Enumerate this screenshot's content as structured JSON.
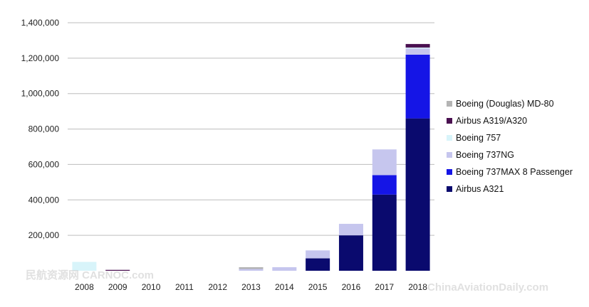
{
  "chart_data": {
    "type": "bar",
    "stacked": true,
    "title": "",
    "xlabel": "",
    "ylabel": "",
    "ylim": [
      0,
      1400000
    ],
    "y_ticks": [
      "200,000",
      "400,000",
      "600,000",
      "800,000",
      "1,000,000",
      "1,200,000",
      "1,400,000"
    ],
    "y_tick_values": [
      200000,
      400000,
      600000,
      800000,
      1000000,
      1200000,
      1400000
    ],
    "grid": true,
    "legend_position": "right",
    "categories": [
      "2008",
      "2009",
      "2010",
      "2011",
      "2012",
      "2013",
      "2014",
      "2015",
      "2016",
      "2017",
      "2018"
    ],
    "series": [
      {
        "name": "Airbus A321",
        "color": "#0a0a6e",
        "values": [
          0,
          0,
          0,
          0,
          0,
          0,
          0,
          70000,
          200000,
          430000,
          860000
        ]
      },
      {
        "name": "Boeing 737MAX 8 Passenger",
        "color": "#1515e6",
        "values": [
          0,
          0,
          0,
          0,
          0,
          0,
          0,
          0,
          0,
          110000,
          360000
        ]
      },
      {
        "name": "Boeing 737NG",
        "color": "#c6c6ee",
        "values": [
          0,
          0,
          0,
          0,
          0,
          10000,
          20000,
          45000,
          65000,
          145000,
          35000
        ]
      },
      {
        "name": "Boeing 757",
        "color": "#d8f4fa",
        "values": [
          50000,
          0,
          0,
          0,
          0,
          0,
          0,
          0,
          0,
          0,
          5000
        ]
      },
      {
        "name": "Airbus A319/A320",
        "color": "#4a1050",
        "values": [
          0,
          5000,
          0,
          0,
          0,
          0,
          0,
          0,
          0,
          0,
          20000
        ]
      },
      {
        "name": "Boeing (Douglas) MD-80",
        "color": "#b4b4b4",
        "values": [
          0,
          0,
          0,
          0,
          0,
          10000,
          0,
          0,
          0,
          0,
          0
        ]
      }
    ],
    "legend_order": [
      "Boeing (Douglas) MD-80",
      "Airbus A319/A320",
      "Boeing 757",
      "Boeing 737NG",
      "Boeing 737MAX 8 Passenger",
      "Airbus A321"
    ]
  },
  "watermarks": {
    "left": "民航资源网 CARNOC.com",
    "right": "ChinaAviationDaily.com"
  }
}
